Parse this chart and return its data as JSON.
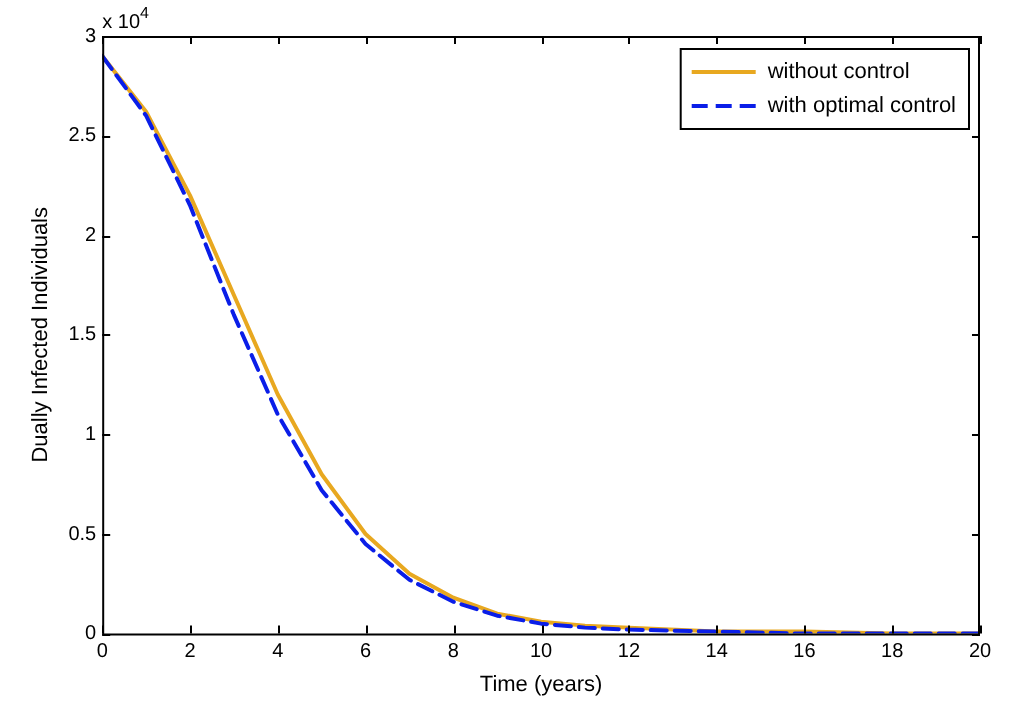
{
  "chart_data": {
    "type": "line",
    "xlabel": "Time (years)",
    "ylabel": "Dually Infected Individuals",
    "annotations": [
      "x 10$^{4}$"
    ],
    "x": [
      0,
      1,
      2,
      3,
      4,
      5,
      6,
      7,
      8,
      9,
      10,
      11,
      12,
      14,
      16,
      18,
      20
    ],
    "series": [
      {
        "name": "without control",
        "color": "#e8a820",
        "line_style": "solid",
        "values": [
          2.9,
          2.62,
          2.2,
          1.7,
          1.2,
          0.8,
          0.5,
          0.3,
          0.18,
          0.1,
          0.06,
          0.04,
          0.03,
          0.01,
          0.01,
          0,
          0
        ]
      },
      {
        "name": "with optimal control",
        "color": "#0a1ee8",
        "line_style": "dashed",
        "values": [
          2.9,
          2.6,
          2.15,
          1.6,
          1.1,
          0.72,
          0.45,
          0.27,
          0.16,
          0.09,
          0.05,
          0.03,
          0.02,
          0.01,
          0,
          0,
          0
        ]
      }
    ],
    "xlim": [
      0,
      20
    ],
    "xticks": [
      0,
      2,
      4,
      6,
      8,
      10,
      12,
      14,
      16,
      18,
      20
    ],
    "ylim": [
      0,
      3
    ],
    "yticks": [
      0,
      0.5,
      1,
      1.5,
      2,
      2.5,
      3
    ],
    "grid": false,
    "legend": "top right",
    "marker": "none"
  }
}
